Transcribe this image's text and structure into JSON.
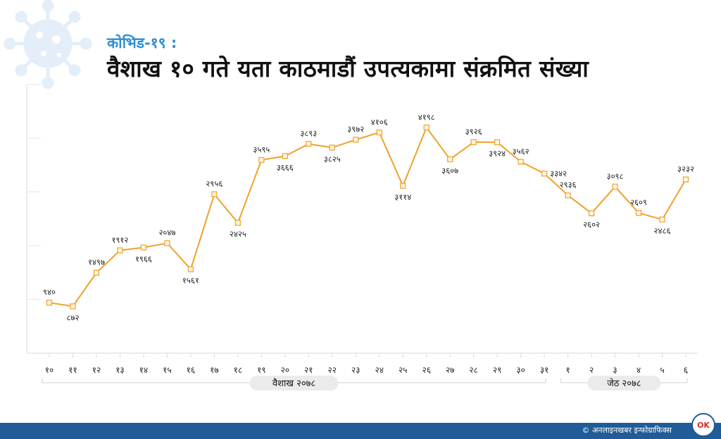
{
  "header": {
    "kicker": "कोभिड-१९ :",
    "title": "वैशाख १० गते यता काठमाडौं उपत्यकामा संक्रमित संख्या"
  },
  "footer": {
    "credit": "© अनलाइनखबर इन्फोग्राफिक्स",
    "logo_text": "OK"
  },
  "colors": {
    "line": "#f0a12a",
    "marker_fill": "#fff6df",
    "axis": "#d9d9d9",
    "footer": "#1f5c98",
    "kicker": "#2f8fd6",
    "virus": "#e3eef8"
  },
  "icons": [
    "virus-icon"
  ],
  "chart_data": {
    "type": "line",
    "title": "वैशाख १० गते यता काठमाडौं उपत्यकामा संक्रमित संख्या",
    "categories": [
      "१०",
      "११",
      "१२",
      "१३",
      "१४",
      "१५",
      "१६",
      "१७",
      "१८",
      "१९",
      "२०",
      "२१",
      "२२",
      "२३",
      "२४",
      "२५",
      "२६",
      "२७",
      "२८",
      "२९",
      "३०",
      "३१",
      "१",
      "२",
      "३",
      "४",
      "५",
      "६"
    ],
    "series": [
      {
        "values": [
          940,
          872,
          1497,
          1912,
          1966,
          2047,
          1561,
          2956,
          2425,
          3595,
          3666,
          3893,
          3825,
          3972,
          4106,
          3114,
          4198,
          3607,
          3926,
          3924,
          3562,
          3342,
          2936,
          2602,
          3098,
          2609,
          2486,
          3232
        ],
        "labels": [
          "९४०",
          "८७२",
          "१४९७",
          "१९१२",
          "१९६६",
          "२०४७",
          "१५६१",
          "२९५६",
          "२४२५",
          "३५९५",
          "३६६६",
          "३८९३",
          "३८२५",
          "३९७२",
          "४१०६",
          "३११४",
          "४१९८",
          "३६०७",
          "३९२६",
          "३९२४",
          "३५६२",
          "३३४२",
          "२९३६",
          "२६०२",
          "३०९८",
          "२६०९",
          "२४८६",
          "३२३२"
        ],
        "label_position": [
          "above",
          "below",
          "above",
          "above",
          "below",
          "above",
          "below",
          "above",
          "below",
          "above",
          "below",
          "above",
          "below",
          "above",
          "above",
          "below",
          "above",
          "below",
          "above",
          "below",
          "above",
          "right",
          "above",
          "below",
          "above",
          "above",
          "below",
          "above"
        ]
      }
    ],
    "ylim": [
      0,
      5000
    ],
    "grid": false,
    "legend": "none",
    "groups": [
      {
        "label": "वैशाख २०७८",
        "from": 0,
        "to": 21
      },
      {
        "label": "जेठ २०७८",
        "from": 22,
        "to": 27
      }
    ]
  }
}
